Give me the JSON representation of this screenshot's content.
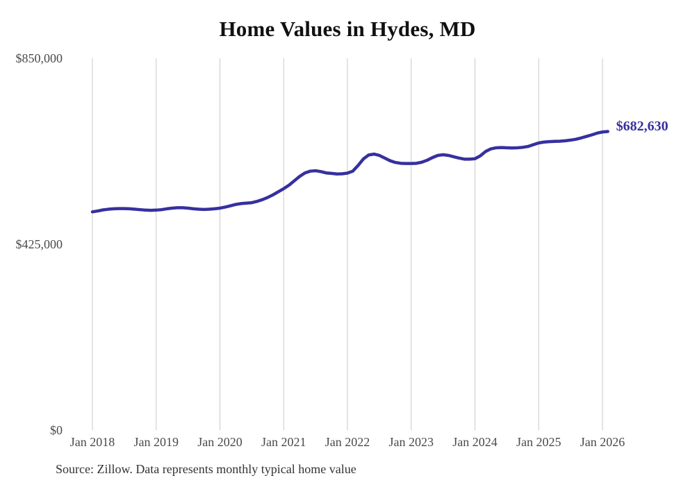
{
  "page": {
    "background": "#ffffff"
  },
  "chart_data": {
    "type": "line",
    "title": "Home Values in Hydes, MD",
    "source_note": "Source: Zillow. Data represents monthly typical home value",
    "legend": "none",
    "grid": "vertical-only",
    "grid_color": "#c9c9c9",
    "axis_label_color": "#4a4a4a",
    "title_color": "#111111",
    "source_color": "#333333",
    "ylim": [
      0,
      850000
    ],
    "y_ticks": [
      {
        "value": 0,
        "label": "$0"
      },
      {
        "value": 425000,
        "label": "$425,000"
      },
      {
        "value": 850000,
        "label": "$850,000"
      }
    ],
    "x_tick_labels": [
      "Jan 2018",
      "Jan 2019",
      "Jan 2020",
      "Jan 2021",
      "Jan 2022",
      "Jan 2023",
      "Jan 2024",
      "Jan 2025",
      "Jan 2026"
    ],
    "end_label": "$682,630",
    "last_value": 682630,
    "series": [
      {
        "name": "Typical home value",
        "color": "#36309e",
        "months": [
          "Jan 2018",
          "Feb 2018",
          "Mar 2018",
          "Apr 2018",
          "May 2018",
          "Jun 2018",
          "Jul 2018",
          "Aug 2018",
          "Sep 2018",
          "Oct 2018",
          "Nov 2018",
          "Dec 2018",
          "Jan 2019",
          "Feb 2019",
          "Mar 2019",
          "Apr 2019",
          "May 2019",
          "Jun 2019",
          "Jul 2019",
          "Aug 2019",
          "Sep 2019",
          "Oct 2019",
          "Nov 2019",
          "Dec 2019",
          "Jan 2020",
          "Feb 2020",
          "Mar 2020",
          "Apr 2020",
          "May 2020",
          "Jun 2020",
          "Jul 2020",
          "Aug 2020",
          "Sep 2020",
          "Oct 2020",
          "Nov 2020",
          "Dec 2020",
          "Jan 2021",
          "Feb 2021",
          "Mar 2021",
          "Apr 2021",
          "May 2021",
          "Jun 2021",
          "Jul 2021",
          "Aug 2021",
          "Sep 2021",
          "Oct 2021",
          "Nov 2021",
          "Dec 2021",
          "Jan 2022",
          "Feb 2022",
          "Mar 2022",
          "Apr 2022",
          "May 2022",
          "Jun 2022",
          "Jul 2022",
          "Aug 2022",
          "Sep 2022",
          "Oct 2022",
          "Nov 2022",
          "Dec 2022",
          "Jan 2023",
          "Feb 2023",
          "Mar 2023",
          "Apr 2023",
          "May 2023",
          "Jun 2023",
          "Jul 2023",
          "Aug 2023",
          "Sep 2023",
          "Oct 2023",
          "Nov 2023",
          "Dec 2023",
          "Jan 2024",
          "Feb 2024",
          "Mar 2024",
          "Apr 2024",
          "May 2024",
          "Jun 2024",
          "Jul 2024",
          "Aug 2024",
          "Sep 2024",
          "Oct 2024",
          "Nov 2024",
          "Dec 2024",
          "Jan 2025",
          "Feb 2025",
          "Mar 2025",
          "Apr 2025",
          "May 2025",
          "Jun 2025",
          "Jul 2025",
          "Aug 2025",
          "Sep 2025",
          "Oct 2025",
          "Nov 2025",
          "Dec 2025",
          "Jan 2026",
          "Feb 2026"
        ],
        "values": [
          499000,
          501000,
          503500,
          505000,
          506000,
          506500,
          506500,
          506000,
          505000,
          504000,
          503000,
          502500,
          503000,
          504000,
          506000,
          507500,
          508500,
          508500,
          507500,
          506000,
          505000,
          504500,
          505000,
          506000,
          507500,
          510000,
          513000,
          516000,
          518000,
          519000,
          520000,
          523000,
          527000,
          532000,
          538000,
          545000,
          552000,
          560000,
          570000,
          580000,
          588000,
          592000,
          593000,
          591000,
          588000,
          587000,
          585500,
          586000,
          587500,
          592000,
          605000,
          620000,
          629000,
          631000,
          628000,
          622000,
          616000,
          612000,
          610000,
          609500,
          609500,
          610000,
          612500,
          617000,
          623000,
          628000,
          629500,
          628000,
          625000,
          622000,
          619500,
          619500,
          620500,
          627000,
          637000,
          643000,
          645500,
          646000,
          645500,
          645000,
          645500,
          646500,
          648500,
          652500,
          656500,
          658500,
          659500,
          660000,
          660500,
          661500,
          663000,
          665000,
          668000,
          671500,
          675000,
          679000,
          681500,
          682630
        ]
      }
    ]
  }
}
